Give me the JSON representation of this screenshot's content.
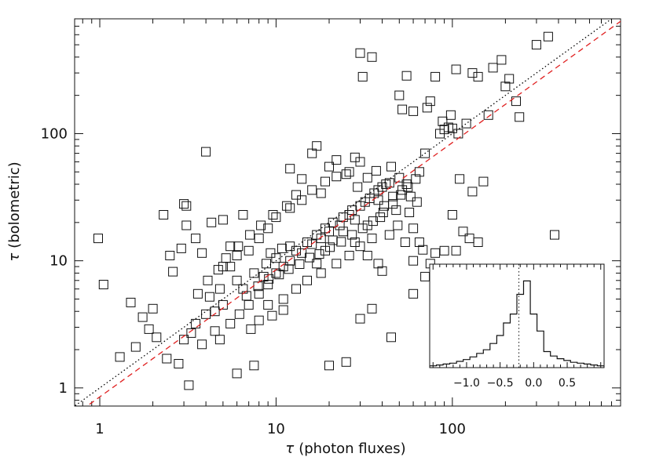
{
  "chart_data": {
    "type": "scatter",
    "main": {
      "xscale": "log",
      "yscale": "log",
      "xlim": [
        0.72,
        900
      ],
      "ylim": [
        0.72,
        800
      ],
      "x_ticks": [
        1,
        10,
        100
      ],
      "x_tick_labels": [
        "1",
        "10",
        "100"
      ],
      "y_ticks": [
        1,
        10,
        100
      ],
      "y_tick_labels": [
        "1",
        "10",
        "100"
      ],
      "xlabel_symbol": "τ",
      "xlabel_text": "(photon fluxes)",
      "ylabel_symbol": "τ",
      "ylabel_text": "(bolometric)",
      "marker": "open-square",
      "reference_lines": [
        {
          "style": "dotted",
          "color": "#000000",
          "relation": "y = x"
        },
        {
          "style": "dashed",
          "color": "#e02020",
          "relation": "y = 0.85 x"
        }
      ],
      "points": [
        [
          0.98,
          15
        ],
        [
          1.05,
          6.5
        ],
        [
          1.3,
          1.75
        ],
        [
          1.5,
          4.7
        ],
        [
          1.6,
          2.1
        ],
        [
          1.75,
          3.6
        ],
        [
          2.0,
          4.2
        ],
        [
          2.3,
          23
        ],
        [
          2.5,
          11
        ],
        [
          2.6,
          8.2
        ],
        [
          2.9,
          12.5
        ],
        [
          3.0,
          28
        ],
        [
          3.1,
          27
        ],
        [
          3.1,
          19
        ],
        [
          3.2,
          1.05
        ],
        [
          3.5,
          15
        ],
        [
          3.8,
          11.5
        ],
        [
          4.0,
          72
        ],
        [
          4.3,
          20
        ],
        [
          4.8,
          2.4
        ],
        [
          5.0,
          21
        ],
        [
          5.5,
          13
        ],
        [
          6.0,
          1.3
        ],
        [
          6.5,
          23
        ],
        [
          7.5,
          1.5
        ],
        [
          2.1,
          2.5
        ],
        [
          2.4,
          1.7
        ],
        [
          3.0,
          2.4
        ],
        [
          1.9,
          2.9
        ],
        [
          2.8,
          1.55
        ],
        [
          12,
          53
        ],
        [
          14,
          44
        ],
        [
          16,
          70
        ],
        [
          17,
          80
        ],
        [
          18,
          34
        ],
        [
          20,
          55
        ],
        [
          22,
          62
        ],
        [
          25,
          48
        ],
        [
          28,
          65
        ],
        [
          30,
          60
        ],
        [
          31,
          280
        ],
        [
          30,
          430
        ],
        [
          35,
          400
        ],
        [
          40,
          38
        ],
        [
          45,
          55
        ],
        [
          50,
          200
        ],
        [
          52,
          155
        ],
        [
          55,
          285
        ],
        [
          60,
          150
        ],
        [
          65,
          50
        ],
        [
          70,
          70
        ],
        [
          72,
          160
        ],
        [
          75,
          180
        ],
        [
          80,
          280
        ],
        [
          85,
          100
        ],
        [
          88,
          125
        ],
        [
          90,
          108
        ],
        [
          95,
          112
        ],
        [
          98,
          140
        ],
        [
          100,
          110
        ],
        [
          105,
          320
        ],
        [
          108,
          100
        ],
        [
          120,
          120
        ],
        [
          130,
          300
        ],
        [
          140,
          280
        ],
        [
          160,
          140
        ],
        [
          170,
          330
        ],
        [
          190,
          380
        ],
        [
          200,
          235
        ],
        [
          210,
          270
        ],
        [
          230,
          180
        ],
        [
          240,
          135
        ],
        [
          300,
          500
        ],
        [
          350,
          580
        ],
        [
          380,
          16
        ],
        [
          100,
          23
        ],
        [
          130,
          35
        ],
        [
          105,
          12
        ],
        [
          110,
          44
        ],
        [
          115,
          17
        ],
        [
          125,
          15
        ],
        [
          140,
          14
        ],
        [
          150,
          42
        ],
        [
          90,
          12
        ],
        [
          80,
          11.5
        ],
        [
          70,
          7.5
        ],
        [
          60,
          5.5
        ],
        [
          45,
          2.5
        ],
        [
          25,
          1.6
        ],
        [
          20,
          1.5
        ],
        [
          30,
          3.5
        ],
        [
          35,
          4.2
        ],
        [
          40,
          8.3
        ],
        [
          65,
          14
        ],
        [
          75,
          9.5
        ],
        [
          68,
          12.2
        ],
        [
          60,
          18
        ],
        [
          42,
          40
        ],
        [
          38,
          30
        ],
        [
          55,
          40
        ],
        [
          58,
          32
        ],
        [
          48,
          25
        ],
        [
          5.5,
          9
        ],
        [
          6,
          7
        ],
        [
          7,
          4.5
        ],
        [
          8,
          5.5
        ],
        [
          9,
          6.5
        ],
        [
          10,
          8
        ],
        [
          11,
          9
        ],
        [
          12,
          10
        ],
        [
          13,
          12
        ],
        [
          15,
          14
        ],
        [
          17,
          16
        ],
        [
          19,
          18
        ],
        [
          21,
          20
        ],
        [
          24,
          22
        ],
        [
          27,
          25
        ],
        [
          32,
          29
        ],
        [
          36,
          34
        ],
        [
          4.5,
          4
        ],
        [
          5,
          4.5
        ],
        [
          6.5,
          6
        ],
        [
          8.5,
          7.5
        ],
        [
          10,
          10.5
        ],
        [
          12,
          13
        ],
        [
          14,
          11.5
        ],
        [
          16,
          13.5
        ],
        [
          18,
          15
        ],
        [
          20,
          17
        ],
        [
          23,
          19
        ],
        [
          26,
          23
        ],
        [
          30,
          27
        ],
        [
          34,
          31
        ],
        [
          38,
          36
        ],
        [
          44,
          41
        ],
        [
          50,
          45
        ],
        [
          9,
          4.5
        ],
        [
          11,
          5
        ],
        [
          13,
          6
        ],
        [
          15,
          7
        ],
        [
          18,
          8
        ],
        [
          22,
          9.5
        ],
        [
          26,
          11
        ],
        [
          30,
          13
        ],
        [
          35,
          15
        ],
        [
          7,
          12
        ],
        [
          8,
          15
        ],
        [
          9,
          18
        ],
        [
          10,
          22
        ],
        [
          12,
          26
        ],
        [
          14,
          30
        ],
        [
          5,
          9
        ],
        [
          6,
          11
        ],
        [
          3.5,
          3.2
        ],
        [
          4,
          3.8
        ],
        [
          4.2,
          5.2
        ],
        [
          4.8,
          6
        ],
        [
          3.3,
          2.7
        ],
        [
          3.8,
          2.2
        ],
        [
          4.5,
          2.8
        ],
        [
          5.5,
          3.2
        ],
        [
          6.2,
          3.8
        ],
        [
          7.2,
          2.9
        ],
        [
          8,
          3.4
        ],
        [
          9.5,
          3.7
        ],
        [
          11,
          4.1
        ],
        [
          3.6,
          5.5
        ],
        [
          4.1,
          7
        ],
        [
          4.7,
          8.5
        ],
        [
          5.2,
          10.5
        ],
        [
          6.1,
          13
        ],
        [
          7.1,
          16
        ],
        [
          8.2,
          19
        ],
        [
          9.6,
          23
        ],
        [
          11.5,
          27
        ],
        [
          13,
          33
        ],
        [
          16,
          36
        ],
        [
          19,
          42
        ],
        [
          22,
          46
        ],
        [
          26,
          50
        ],
        [
          29,
          38
        ],
        [
          33,
          45
        ],
        [
          37,
          51
        ],
        [
          41,
          27
        ],
        [
          46,
          32
        ],
        [
          52,
          36
        ],
        [
          57,
          24
        ],
        [
          63,
          29
        ],
        [
          24,
          17
        ],
        [
          28,
          21
        ],
        [
          33,
          19
        ],
        [
          39,
          22
        ],
        [
          44,
          16
        ],
        [
          49,
          19
        ],
        [
          54,
          14
        ],
        [
          60,
          10
        ],
        [
          28,
          14
        ],
        [
          33,
          11
        ],
        [
          38,
          9.5
        ],
        [
          17,
          9.5
        ],
        [
          19,
          12
        ],
        [
          21,
          14.5
        ],
        [
          7.5,
          8
        ],
        [
          8.8,
          9.5
        ],
        [
          9.3,
          11.5
        ],
        [
          10.8,
          12.5
        ],
        [
          6.8,
          5.3
        ],
        [
          7.9,
          6.3
        ],
        [
          9.1,
          7.2
        ],
        [
          10.4,
          7.8
        ],
        [
          11.8,
          8.6
        ],
        [
          13.6,
          9.4
        ],
        [
          15.5,
          10.6
        ],
        [
          17.6,
          11.3
        ],
        [
          20.2,
          12.8
        ],
        [
          23.4,
          14.1
        ],
        [
          27,
          16
        ],
        [
          31,
          18
        ],
        [
          35.5,
          20.5
        ],
        [
          40.5,
          24
        ],
        [
          46,
          28
        ],
        [
          51,
          33
        ],
        [
          56,
          38
        ],
        [
          62,
          44
        ]
      ]
    },
    "inset": {
      "type": "histogram",
      "xlim": [
        -1.55,
        1.05
      ],
      "ylim": [
        0,
        1
      ],
      "x_ticks": [
        -1.0,
        -0.5,
        0.0,
        0.5
      ],
      "x_tick_labels": [
        "−1.0",
        "−0.5",
        "0.0",
        "0.5"
      ],
      "vline_x": -0.22,
      "vline_style": "dotted",
      "bin_edges": [
        -1.55,
        -1.45,
        -1.35,
        -1.25,
        -1.15,
        -1.05,
        -0.95,
        -0.85,
        -0.75,
        -0.65,
        -0.55,
        -0.45,
        -0.35,
        -0.25,
        -0.15,
        -0.05,
        0.05,
        0.15,
        0.25,
        0.35,
        0.45,
        0.55,
        0.65,
        0.75,
        0.85,
        0.95,
        1.05
      ],
      "counts": [
        0.02,
        0.03,
        0.04,
        0.05,
        0.07,
        0.09,
        0.12,
        0.16,
        0.2,
        0.27,
        0.36,
        0.5,
        0.6,
        0.82,
        0.97,
        0.6,
        0.41,
        0.18,
        0.13,
        0.1,
        0.08,
        0.06,
        0.05,
        0.04,
        0.03,
        0.02
      ]
    }
  }
}
